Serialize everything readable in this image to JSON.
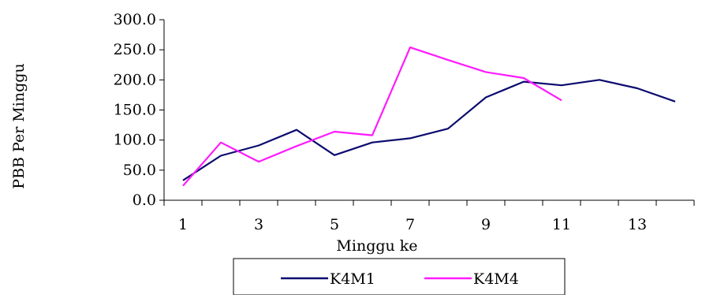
{
  "chart_data": {
    "type": "line",
    "xlabel": "Minggu ke",
    "ylabel": "PBB Per Minggu",
    "x": [
      1,
      2,
      3,
      4,
      5,
      6,
      7,
      8,
      9,
      10,
      11,
      12,
      13,
      14
    ],
    "x_tick_labels": [
      "1",
      "3",
      "5",
      "7",
      "9",
      "11",
      "13"
    ],
    "y_tick_labels": [
      "0.0",
      "50.0",
      "100.0",
      "150.0",
      "200.0",
      "250.0",
      "300.0"
    ],
    "ylim": [
      0,
      300
    ],
    "grid": false,
    "legend_position": "bottom",
    "series": [
      {
        "name": "K4M1",
        "color": "#0a0a6e",
        "values": [
          33,
          74,
          91,
          117,
          75,
          96,
          103,
          119,
          171,
          197,
          191,
          200,
          186,
          164
        ]
      },
      {
        "name": "K4M4",
        "color": "#ff1aff",
        "values": [
          24,
          96,
          64,
          90,
          114,
          108,
          254,
          233,
          213,
          203,
          166,
          null,
          null,
          null
        ]
      }
    ]
  }
}
